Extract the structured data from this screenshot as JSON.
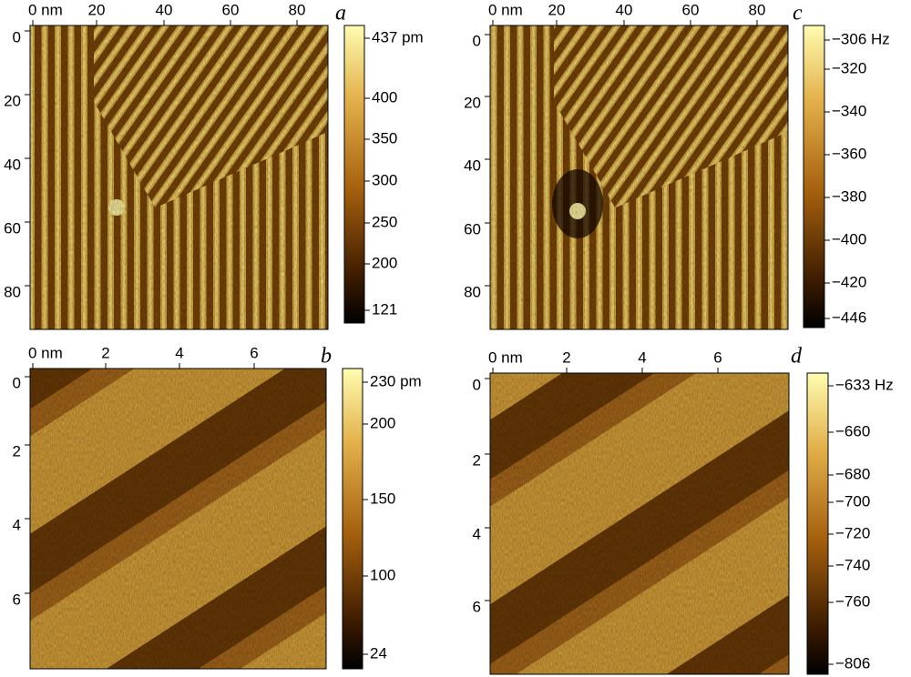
{
  "panels": [
    {
      "letter": "a",
      "x_ticks": [
        "0 nm",
        "20",
        "40",
        "60",
        "80"
      ],
      "y_ticks": [
        "0",
        "20",
        "40",
        "60",
        "80"
      ],
      "colorbar": [
        "437 pm",
        "400",
        "350",
        "300",
        "250",
        "200",
        "121"
      ]
    },
    {
      "letter": "b",
      "x_ticks": [
        "0 nm",
        "2",
        "4",
        "6"
      ],
      "y_ticks": [
        "0",
        "2",
        "4",
        "6"
      ],
      "colorbar": [
        "230 pm",
        "200",
        "150",
        "100",
        "24"
      ]
    },
    {
      "letter": "c",
      "x_ticks": [
        "0 nm",
        "20",
        "40",
        "60",
        "80"
      ],
      "y_ticks": [
        "0",
        "20",
        "40",
        "60",
        "80"
      ],
      "colorbar": [
        "−306 Hz",
        "−320",
        "−340",
        "−360",
        "−380",
        "−400",
        "−420",
        "−446"
      ]
    },
    {
      "letter": "d",
      "x_ticks": [
        "0 nm",
        "2",
        "4",
        "6"
      ],
      "y_ticks": [
        "0",
        "2",
        "4",
        "6"
      ],
      "colorbar": [
        "−633 Hz",
        "−660",
        "−680",
        "−700",
        "−720",
        "−740",
        "−760",
        "−806"
      ]
    }
  ]
}
